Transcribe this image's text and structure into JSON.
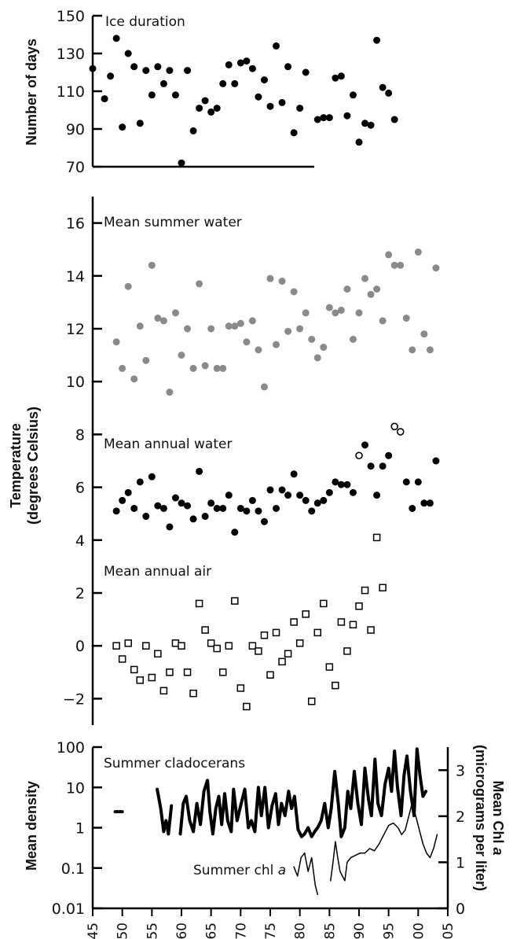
{
  "chart_data": [
    {
      "type": "scatter",
      "panel": "ice",
      "ylabel": "Number of days",
      "ylim": [
        70,
        150
      ],
      "yticks": [
        70,
        90,
        110,
        130,
        150
      ],
      "series": [
        {
          "name": "Ice duration",
          "color": "#000000",
          "marker": "filled-circle",
          "x": [
            1945,
            1947,
            1948,
            1949,
            1950,
            1951,
            1952,
            1953,
            1954,
            1955,
            1956,
            1957,
            1958,
            1959,
            1960,
            1961,
            1962,
            1963,
            1964,
            1965,
            1966,
            1967,
            1968,
            1969,
            1970,
            1971,
            1972,
            1973,
            1974,
            1975,
            1976,
            1977,
            1978,
            1979,
            1980,
            1981,
            1983,
            1984,
            1985,
            1986,
            1987,
            1988,
            1989,
            1990,
            1991,
            1992,
            1993,
            1994,
            1995,
            1996
          ],
          "y": [
            122,
            106,
            118,
            138,
            91,
            130,
            123,
            93,
            121,
            108,
            123,
            114,
            121,
            108,
            72,
            121,
            89,
            101,
            105,
            99,
            101,
            114,
            124,
            114,
            125,
            126,
            122,
            107,
            116,
            102,
            134,
            104,
            123,
            88,
            101,
            120,
            95,
            96,
            96,
            117,
            118,
            97,
            108,
            83,
            93,
            92,
            137,
            112,
            109,
            95
          ]
        }
      ]
    },
    {
      "type": "scatter",
      "panel": "temperature",
      "ylabel": "Temperature (degrees Celsius)",
      "ylim": [
        -3,
        17
      ],
      "yticks": [
        -2,
        0,
        2,
        4,
        6,
        8,
        10,
        12,
        14,
        16
      ],
      "series": [
        {
          "name": "Mean summer water",
          "color": "#8a8a8a",
          "marker": "filled-circle",
          "x": [
            1949,
            1950,
            1951,
            1952,
            1953,
            1954,
            1955,
            1956,
            1957,
            1958,
            1959,
            1960,
            1961,
            1962,
            1963,
            1964,
            1965,
            1966,
            1967,
            1968,
            1969,
            1970,
            1971,
            1972,
            1973,
            1974,
            1975,
            1976,
            1977,
            1978,
            1979,
            1980,
            1981,
            1982,
            1983,
            1984,
            1985,
            1986,
            1987,
            1988,
            1989,
            1990,
            1991,
            1992,
            1993,
            1994,
            1995,
            1996,
            1997,
            1998,
            1999,
            2000,
            2001,
            2002,
            2003
          ],
          "y": [
            11.5,
            10.5,
            13.6,
            10.1,
            12.1,
            10.8,
            14.4,
            12.4,
            12.3,
            9.6,
            12.6,
            11.0,
            12.0,
            10.5,
            13.7,
            10.6,
            12.0,
            10.5,
            10.5,
            12.1,
            12.1,
            12.2,
            11.5,
            12.3,
            11.2,
            9.8,
            13.9,
            11.4,
            13.8,
            11.9,
            13.4,
            12.0,
            12.6,
            11.6,
            10.9,
            11.3,
            12.8,
            12.6,
            12.7,
            13.5,
            11.6,
            12.6,
            13.9,
            13.3,
            13.5,
            12.3,
            14.8,
            14.4,
            14.4,
            12.4,
            11.2,
            14.9,
            11.8,
            11.2,
            14.3
          ]
        },
        {
          "name": "Mean annual water",
          "color": "#000000",
          "marker": "filled-circle",
          "x": [
            1949,
            1950,
            1951,
            1952,
            1953,
            1954,
            1955,
            1956,
            1957,
            1958,
            1959,
            1960,
            1961,
            1962,
            1963,
            1964,
            1965,
            1966,
            1967,
            1968,
            1969,
            1970,
            1971,
            1972,
            1973,
            1974,
            1975,
            1976,
            1977,
            1978,
            1979,
            1980,
            1981,
            1982,
            1983,
            1984,
            1985,
            1986,
            1987,
            1988,
            1989,
            1991,
            1992,
            1993,
            1994,
            1995,
            1998,
            1999,
            2000,
            2001,
            2002,
            2003
          ],
          "y": [
            5.1,
            5.5,
            5.8,
            5.2,
            6.2,
            4.9,
            6.4,
            5.3,
            5.2,
            4.5,
            5.6,
            5.4,
            5.3,
            4.8,
            6.6,
            4.9,
            5.4,
            5.2,
            5.2,
            5.7,
            4.3,
            5.2,
            5.1,
            5.5,
            5.1,
            4.7,
            5.9,
            5.2,
            5.9,
            5.7,
            6.5,
            5.7,
            5.5,
            5.1,
            5.4,
            5.5,
            5.8,
            6.2,
            6.1,
            6.1,
            5.8,
            7.6,
            6.8,
            5.7,
            6.8,
            7.2,
            6.2,
            5.2,
            6.2,
            5.4,
            5.4,
            7.0
          ]
        },
        {
          "name": "Mean annual water (open markers)",
          "color": "#000000",
          "marker": "open-circle",
          "x": [
            1990,
            1996,
            1997
          ],
          "y": [
            7.2,
            8.3,
            8.1
          ]
        },
        {
          "name": "Mean annual air",
          "color": "#000000",
          "marker": "open-square",
          "x": [
            1949,
            1950,
            1951,
            1952,
            1953,
            1954,
            1955,
            1956,
            1957,
            1958,
            1959,
            1960,
            1961,
            1962,
            1963,
            1964,
            1965,
            1966,
            1967,
            1968,
            1969,
            1970,
            1971,
            1972,
            1973,
            1974,
            1975,
            1976,
            1977,
            1978,
            1979,
            1980,
            1981,
            1982,
            1983,
            1984,
            1985,
            1986,
            1987,
            1988,
            1989,
            1990,
            1991,
            1992,
            1993,
            1994
          ],
          "y": [
            0.0,
            -0.5,
            0.1,
            -0.9,
            -1.3,
            0.0,
            -1.2,
            -0.3,
            -1.7,
            -1.0,
            0.1,
            0.0,
            -1.0,
            -1.8,
            1.6,
            0.6,
            0.1,
            -0.1,
            -1.0,
            0.0,
            1.7,
            -1.6,
            -2.3,
            0.0,
            -0.2,
            0.4,
            -1.1,
            0.5,
            -0.6,
            -0.3,
            0.9,
            0.1,
            1.2,
            -2.1,
            0.5,
            1.6,
            -0.8,
            -1.5,
            0.9,
            -0.2,
            0.8,
            1.5,
            2.1,
            0.6,
            4.1,
            2.2
          ]
        }
      ],
      "annotations": [
        "Mean summer water",
        "Mean annual water",
        "Mean annual air"
      ]
    },
    {
      "type": "line",
      "panel": "density",
      "ylabel": "Mean density",
      "yscale": "log",
      "ylim": [
        0.01,
        100
      ],
      "yticks": [
        0.01,
        0.1,
        1,
        10,
        100
      ],
      "ylabel_right": "Mean Chl a (micrograms per liter)",
      "ylim_right": [
        0,
        3.5
      ],
      "yticks_right": [
        0,
        1,
        2,
        3
      ],
      "xlim": [
        1945,
        2005
      ],
      "xticks": [
        1945,
        1950,
        1955,
        1960,
        1965,
        1970,
        1975,
        1980,
        1985,
        1990,
        1995,
        2000,
        2005
      ],
      "series": [
        {
          "name": "Summer cladocerans",
          "axis": "left",
          "stroke": 4,
          "segments": [
            {
              "x": [
                1948.8,
                1950.0
              ],
              "y": [
                2.5,
                2.5
              ]
            },
            {
              "x": [
                1955.9,
                1956.5,
                1957.0,
                1957.4,
                1957.8,
                1958.3
              ],
              "y": [
                9.0,
                3.0,
                0.8,
                1.5,
                0.7,
                3.5
              ]
            },
            {
              "x": [
                1959.8,
                1960.3,
                1960.8,
                1961.4,
                1962.0,
                1962.6,
                1963.2,
                1963.8,
                1964.4,
                1964.8,
                1965.3,
                1965.8,
                1966.3,
                1966.8,
                1967.3,
                1967.8,
                1968.4,
                1968.8,
                1969.4,
                1970.0,
                1970.7,
                1971.3,
                1971.8,
                1972.4,
                1973.0,
                1973.5,
                1974.1,
                1974.7,
                1975.3,
                1975.9,
                1976.4,
                1976.9,
                1977.5,
                1978.1,
                1978.6,
                1979.1,
                1979.7,
                1980.3,
                1980.8,
                1981.4,
                1982.0,
                1982.5,
                1983.0,
                1983.6,
                1984.2,
                1984.8,
                1985.3,
                1985.9,
                1986.5,
                1987.0,
                1987.6,
                1988.1,
                1988.6,
                1989.2,
                1989.8,
                1990.4,
                1991.0,
                1991.6,
                1992.1,
                1992.7,
                1993.2,
                1993.8,
                1994.4,
                1995.0,
                1995.5,
                1996.0,
                1996.5,
                1997.1,
                1997.6,
                1998.1,
                1998.7,
                1999.3,
                1999.8,
                2000.3,
                2000.8,
                2001.3
              ],
              "y": [
                0.7,
                4.0,
                6.0,
                1.5,
                0.8,
                4.0,
                1.2,
                8.0,
                15.0,
                2.5,
                0.7,
                3.0,
                6.0,
                1.2,
                7.0,
                1.5,
                0.8,
                9.0,
                1.5,
                3.5,
                9.0,
                1.0,
                1.5,
                0.8,
                10.0,
                2.0,
                10.0,
                1.0,
                3.5,
                7.0,
                1.2,
                4.0,
                2.0,
                8.0,
                3.0,
                6.0,
                0.9,
                0.6,
                0.7,
                1.0,
                0.6,
                0.8,
                1.0,
                1.5,
                4.0,
                1.0,
                3.0,
                25.0,
                4.0,
                0.6,
                1.0,
                8.0,
                3.0,
                25.0,
                4.0,
                1.2,
                30.0,
                5.0,
                2.0,
                50.0,
                4.0,
                2.0,
                12.0,
                30.0,
                8.0,
                80.0,
                10.0,
                2.0,
                20.0,
                60.0,
                8.0,
                2.0,
                90.0,
                20.0,
                6.0,
                8.0
              ]
            }
          ]
        },
        {
          "name": "Summer chl a",
          "axis": "right",
          "stroke": 1.5,
          "segments": [
            {
              "x": [
                1979.0,
                1979.6,
                1980.2,
                1980.8,
                1981.4,
                1982.0,
                1982.6,
                1983.0
              ],
              "y": [
                0.9,
                0.7,
                1.1,
                1.2,
                0.8,
                1.1,
                0.5,
                0.3
              ]
            },
            {
              "x": [
                1985.2,
                1985.6,
                1986.0,
                1986.4,
                1986.8,
                1987.2,
                1987.6,
                1988.0,
                1988.6,
                1989.4,
                1990.2,
                1991.0,
                1991.8,
                1992.6,
                1993.4,
                1994.2,
                1995.0,
                1995.8,
                1996.6,
                1997.2,
                1997.8,
                1998.4,
                1999.0,
                1999.6,
                2000.2,
                2000.8,
                2001.4,
                2002.0,
                2002.6,
                2003.2
              ],
              "y": [
                0.6,
                1.0,
                1.45,
                1.1,
                0.8,
                0.7,
                0.6,
                1.0,
                1.1,
                1.15,
                1.2,
                1.2,
                1.3,
                1.25,
                1.4,
                1.6,
                1.8,
                1.85,
                1.75,
                1.6,
                1.7,
                2.0,
                2.3,
                2.0,
                1.7,
                1.4,
                1.2,
                1.1,
                1.3,
                1.6
              ]
            }
          ]
        }
      ],
      "annotations": [
        "Summer cladocerans",
        "Summer chl a"
      ]
    }
  ],
  "labels": {
    "ice_ylabel": "Number of days",
    "ice_series": "Ice duration",
    "temp_ylabel_1": "Temperature",
    "temp_ylabel_2": "(degrees Celsius)",
    "summer_water": "Mean summer water",
    "annual_water": "Mean annual water",
    "annual_air": "Mean annual air",
    "density_ylabel": "Mean density",
    "chl_ylabel_1": "Mean Chl",
    "chl_ylabel_1_italic": "a",
    "chl_ylabel_2": "(micrograms per liter)",
    "cladocerans": "Summer cladocerans",
    "chl_series": "Summer chl",
    "chl_series_italic": "a"
  }
}
